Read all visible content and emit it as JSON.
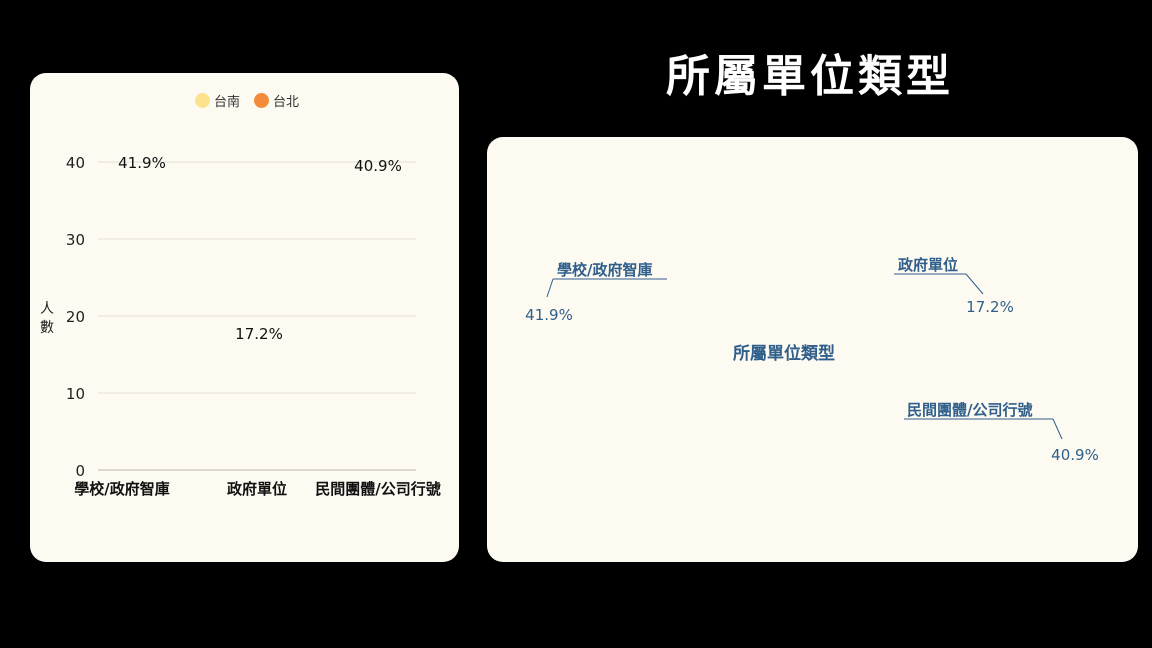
{
  "page_title": "所屬單位類型",
  "colors": {
    "tainan": "#fbe38e",
    "taipei": "#f28c3a",
    "donut_label": "#2f5f8a",
    "card_bg": "#fdfaf2"
  },
  "chart_data": [
    {
      "type": "bar",
      "legend": [
        "台南",
        "台北"
      ],
      "legend_position": "top",
      "ylabel": "人數",
      "ylim": [
        0,
        40
      ],
      "yticks": [
        0,
        10,
        20,
        30,
        40
      ],
      "grid": true,
      "categories": [
        "學校/政府智庫",
        "政府單位",
        "民間團體/公司行號"
      ],
      "series": [
        {
          "name": "台南",
          "values": [
            0,
            0,
            0
          ]
        },
        {
          "name": "台北",
          "values": [
            0,
            0,
            0
          ]
        }
      ],
      "data_labels": [
        "41.9%",
        "17.2%",
        "40.9%"
      ]
    },
    {
      "type": "pie",
      "center_label": "所屬單位類型",
      "labels": [
        "學校/政府智庫",
        "政府單位",
        "民間團體/公司行號"
      ],
      "values": [
        41.9,
        17.2,
        40.9
      ],
      "value_labels": [
        "41.9%",
        "17.2%",
        "40.9%"
      ]
    }
  ]
}
